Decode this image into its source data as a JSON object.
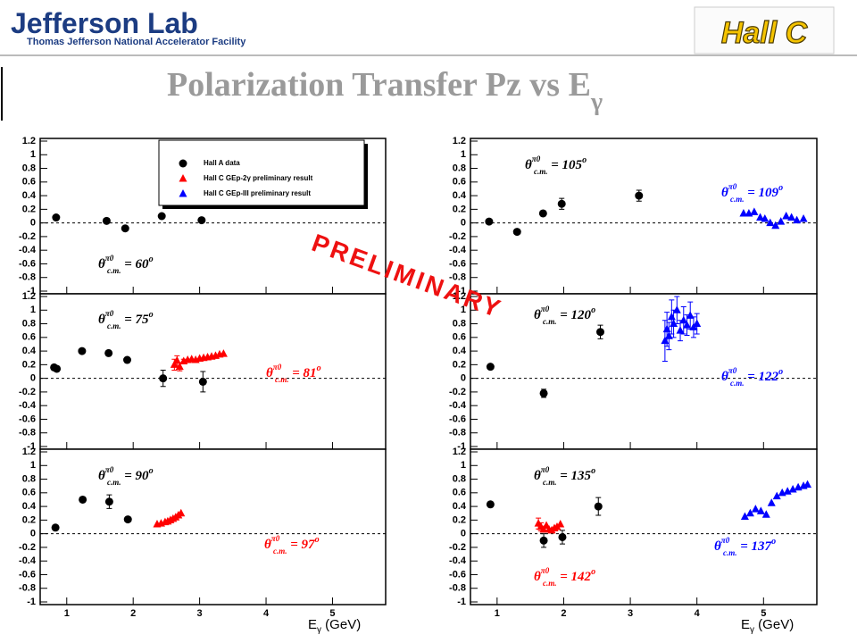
{
  "header": {
    "logo": "Jefferson Lab",
    "logo_subtitle": "Thomas Jefferson National Accelerator Facility",
    "hall_logo": "Hall C",
    "title": "Polarization Transfer Pz vs E",
    "title_sub": "γ"
  },
  "watermark": "PRELIMINARY",
  "chart_data": [
    {
      "type": "scatter",
      "xlim": [
        0.6,
        5.8
      ],
      "xticks": [
        1,
        2,
        3,
        4,
        5
      ],
      "xtick_labels": false,
      "ylim": [
        -1,
        1.2
      ],
      "yticks": [
        -1,
        -0.8,
        -0.6,
        -0.4,
        -0.2,
        0,
        0.2,
        0.4,
        0.6,
        0.8,
        1,
        1.2
      ],
      "reference_line": 0,
      "legend": "top",
      "series": [
        {
          "name": "Hall A data",
          "color": "#000000",
          "marker": "circle",
          "x": [
            0.84,
            1.6,
            1.88,
            2.43,
            3.03
          ],
          "values": [
            0.08,
            0.03,
            -0.08,
            0.1,
            0.04
          ],
          "errors": [
            null,
            null,
            null,
            null,
            null
          ]
        },
        {
          "name": "Hall C GEp-2γ preliminary result",
          "color": "#ff0000",
          "marker": "triangle",
          "x": [],
          "values": [],
          "errors": []
        },
        {
          "name": "Hall C GEp-III preliminary result",
          "color": "#0000ff",
          "marker": "triangle",
          "x": [],
          "values": [],
          "errors": []
        }
      ],
      "annotations": [
        {
          "symbol": "θ",
          "sup": "π0",
          "sub": "c.m.",
          "text": " = 60",
          "unit": "o",
          "color": "#000000"
        }
      ]
    },
    {
      "type": "scatter",
      "xlim": [
        0.6,
        5.8
      ],
      "xticks": [
        1,
        2,
        3,
        4,
        5
      ],
      "xtick_labels": false,
      "ylim": [
        -1,
        1.2
      ],
      "yticks": [
        -1,
        -0.8,
        -0.6,
        -0.4,
        -0.2,
        0,
        0.2,
        0.4,
        0.6,
        0.8,
        1,
        1.2
      ],
      "reference_line": 0,
      "series": [
        {
          "color": "#000000",
          "marker": "circle",
          "x": [
            0.81,
            0.85,
            1.23,
            1.63,
            1.91,
            2.45,
            3.05
          ],
          "values": [
            0.16,
            0.14,
            0.4,
            0.37,
            0.27,
            0.0,
            -0.05
          ],
          "errors": [
            null,
            null,
            null,
            null,
            null,
            0.12,
            0.15
          ]
        },
        {
          "color": "#ff0000",
          "marker": "triangle",
          "x": [
            2.62,
            2.66,
            2.7,
            2.76,
            2.82,
            2.88,
            2.94,
            3.0,
            3.06,
            3.12,
            3.18,
            3.24,
            3.3,
            3.36
          ],
          "values": [
            0.2,
            0.26,
            0.17,
            0.25,
            0.27,
            0.28,
            0.27,
            0.29,
            0.3,
            0.31,
            0.32,
            0.33,
            0.35,
            0.36
          ],
          "errors": [
            0.08,
            0.07,
            0.06,
            0.03,
            null,
            null,
            null,
            null,
            null,
            null,
            null,
            null,
            null,
            null
          ]
        }
      ],
      "annotations": [
        {
          "symbol": "θ",
          "sup": "π0",
          "sub": "c.m.",
          "text": " = 75",
          "unit": "o",
          "color": "#000000"
        },
        {
          "symbol": "θ",
          "sup": "π0",
          "sub": "c.m.",
          "text": " = 81",
          "unit": "o",
          "color": "#ff0000"
        }
      ]
    },
    {
      "type": "scatter",
      "xlim": [
        0.6,
        5.8
      ],
      "xticks": [
        1,
        2,
        3,
        4,
        5
      ],
      "xtick_labels": true,
      "ylim": [
        -1,
        1.2
      ],
      "yticks": [
        -1,
        -0.8,
        -0.6,
        -0.4,
        -0.2,
        0,
        0.2,
        0.4,
        0.6,
        0.8,
        1,
        1.2
      ],
      "reference_line": 0,
      "xlabel": {
        "text": "E",
        "sub": "γ",
        "unit": " (GeV)"
      },
      "series": [
        {
          "color": "#000000",
          "marker": "circle",
          "x": [
            0.83,
            1.24,
            1.64,
            1.92
          ],
          "values": [
            0.09,
            0.5,
            0.47,
            0.21
          ],
          "errors": [
            null,
            null,
            0.1,
            null
          ]
        },
        {
          "color": "#ff0000",
          "marker": "triangle",
          "x": [
            2.36,
            2.42,
            2.48,
            2.52,
            2.56,
            2.6,
            2.64,
            2.68,
            2.72
          ],
          "values": [
            0.14,
            0.15,
            0.17,
            0.18,
            0.2,
            0.22,
            0.24,
            0.27,
            0.3
          ],
          "errors": [
            null,
            null,
            null,
            null,
            null,
            null,
            null,
            null,
            null
          ]
        }
      ],
      "annotations": [
        {
          "symbol": "θ",
          "sup": "π0",
          "sub": "c.m.",
          "text": " = 90",
          "unit": "o",
          "color": "#000000"
        },
        {
          "symbol": "θ",
          "sup": "π0",
          "sub": "c.m.",
          "text": " = 97",
          "unit": "o",
          "color": "#ff0000"
        }
      ]
    },
    {
      "type": "scatter",
      "xlim": [
        0.6,
        5.8
      ],
      "xticks": [
        1,
        2,
        3,
        4,
        5
      ],
      "xtick_labels": false,
      "ylim": [
        -1,
        1.2
      ],
      "yticks": [
        -1,
        -0.8,
        -0.6,
        -0.4,
        -0.2,
        0,
        0.2,
        0.4,
        0.6,
        0.8,
        1,
        1.2
      ],
      "reference_line": 0,
      "series": [
        {
          "color": "#000000",
          "marker": "circle",
          "x": [
            0.88,
            1.3,
            1.69,
            1.97,
            3.13
          ],
          "values": [
            0.02,
            -0.13,
            0.14,
            0.28,
            0.4
          ],
          "errors": [
            null,
            null,
            null,
            0.08,
            0.08
          ]
        },
        {
          "color": "#0000ff",
          "marker": "triangle",
          "x": [
            4.7,
            4.78,
            4.86,
            4.95,
            5.02,
            5.1,
            5.18,
            5.26,
            5.34,
            5.42,
            5.5,
            5.6
          ],
          "values": [
            0.14,
            0.14,
            0.16,
            0.08,
            0.06,
            0.0,
            -0.04,
            0.02,
            0.1,
            0.08,
            0.04,
            0.06
          ],
          "errors": [
            null,
            null,
            null,
            null,
            null,
            null,
            null,
            null,
            null,
            null,
            null,
            null
          ]
        }
      ],
      "annotations": [
        {
          "symbol": "θ",
          "sup": "π0",
          "sub": "c.m.",
          "text": " = 105",
          "unit": "o",
          "color": "#000000"
        },
        {
          "symbol": "θ",
          "sup": "π0",
          "sub": "c.m.",
          "text": " = 109",
          "unit": "o",
          "color": "#0000ff"
        }
      ]
    },
    {
      "type": "scatter",
      "xlim": [
        0.6,
        5.8
      ],
      "xticks": [
        1,
        2,
        3,
        4,
        5
      ],
      "xtick_labels": false,
      "ylim": [
        -1,
        1.2
      ],
      "yticks": [
        -1,
        -0.8,
        -0.6,
        -0.4,
        -0.2,
        0,
        0.2,
        0.4,
        0.6,
        0.8,
        1,
        1.2
      ],
      "reference_line": 0,
      "series": [
        {
          "color": "#000000",
          "marker": "circle",
          "x": [
            0.9,
            1.7,
            2.55
          ],
          "values": [
            0.17,
            -0.22,
            0.68
          ],
          "errors": [
            null,
            0.06,
            0.1
          ]
        },
        {
          "color": "#0000ff",
          "marker": "triangle",
          "x": [
            3.52,
            3.55,
            3.58,
            3.62,
            3.65,
            3.7,
            3.75,
            3.8,
            3.85,
            3.9,
            3.95,
            4.0
          ],
          "values": [
            0.55,
            0.72,
            0.62,
            0.9,
            0.8,
            1.0,
            0.7,
            0.85,
            0.78,
            0.92,
            0.75,
            0.8
          ],
          "errors": [
            0.3,
            0.25,
            0.2,
            0.25,
            0.2,
            0.2,
            0.15,
            0.2,
            0.15,
            0.2,
            0.15,
            0.15
          ]
        }
      ],
      "annotations": [
        {
          "symbol": "θ",
          "sup": "π0",
          "sub": "c.m.",
          "text": " = 120",
          "unit": "o",
          "color": "#000000"
        },
        {
          "symbol": "θ",
          "sup": "π0",
          "sub": "c.m.",
          "text": " = 122",
          "unit": "o",
          "color": "#0000ff"
        }
      ]
    },
    {
      "type": "scatter",
      "xlim": [
        0.6,
        5.8
      ],
      "xticks": [
        1,
        2,
        3,
        4,
        5
      ],
      "xtick_labels": true,
      "ylim": [
        -1,
        1.2
      ],
      "yticks": [
        -1,
        -0.8,
        -0.6,
        -0.4,
        -0.2,
        0,
        0.2,
        0.4,
        0.6,
        0.8,
        1,
        1.2
      ],
      "reference_line": 0,
      "xlabel": {
        "text": "E",
        "sub": "γ",
        "unit": " (GeV)"
      },
      "series": [
        {
          "color": "#000000",
          "marker": "circle",
          "x": [
            0.9,
            1.7,
            1.98,
            2.52
          ],
          "values": [
            0.43,
            -0.1,
            -0.05,
            0.4
          ],
          "errors": [
            null,
            0.1,
            0.1,
            0.13
          ]
        },
        {
          "color": "#ff0000",
          "marker": "triangle",
          "x": [
            1.62,
            1.66,
            1.7,
            1.74,
            1.78,
            1.82,
            1.86,
            1.9,
            1.95
          ],
          "values": [
            0.15,
            0.1,
            0.06,
            0.12,
            0.06,
            0.05,
            0.08,
            0.1,
            0.14
          ],
          "errors": [
            0.08,
            0.06,
            null,
            null,
            null,
            null,
            null,
            null,
            null
          ]
        },
        {
          "color": "#0000ff",
          "marker": "triangle",
          "x": [
            4.72,
            4.8,
            4.88,
            4.96,
            5.04,
            5.12,
            5.2,
            5.28,
            5.36,
            5.44,
            5.52,
            5.6,
            5.66
          ],
          "values": [
            0.25,
            0.3,
            0.36,
            0.33,
            0.28,
            0.45,
            0.55,
            0.6,
            0.62,
            0.65,
            0.68,
            0.7,
            0.72
          ],
          "errors": [
            null,
            null,
            null,
            null,
            null,
            null,
            null,
            null,
            null,
            null,
            null,
            null,
            null
          ]
        }
      ],
      "annotations": [
        {
          "symbol": "θ",
          "sup": "π0",
          "sub": "c.m.",
          "text": " = 135",
          "unit": "o",
          "color": "#000000"
        },
        {
          "symbol": "θ",
          "sup": "π0",
          "sub": "c.m.",
          "text": " = 142",
          "unit": "o",
          "color": "#ff0000"
        },
        {
          "symbol": "θ",
          "sup": "π0",
          "sub": "c.m.",
          "text": " = 137",
          "unit": "o",
          "color": "#0000ff"
        }
      ]
    }
  ]
}
